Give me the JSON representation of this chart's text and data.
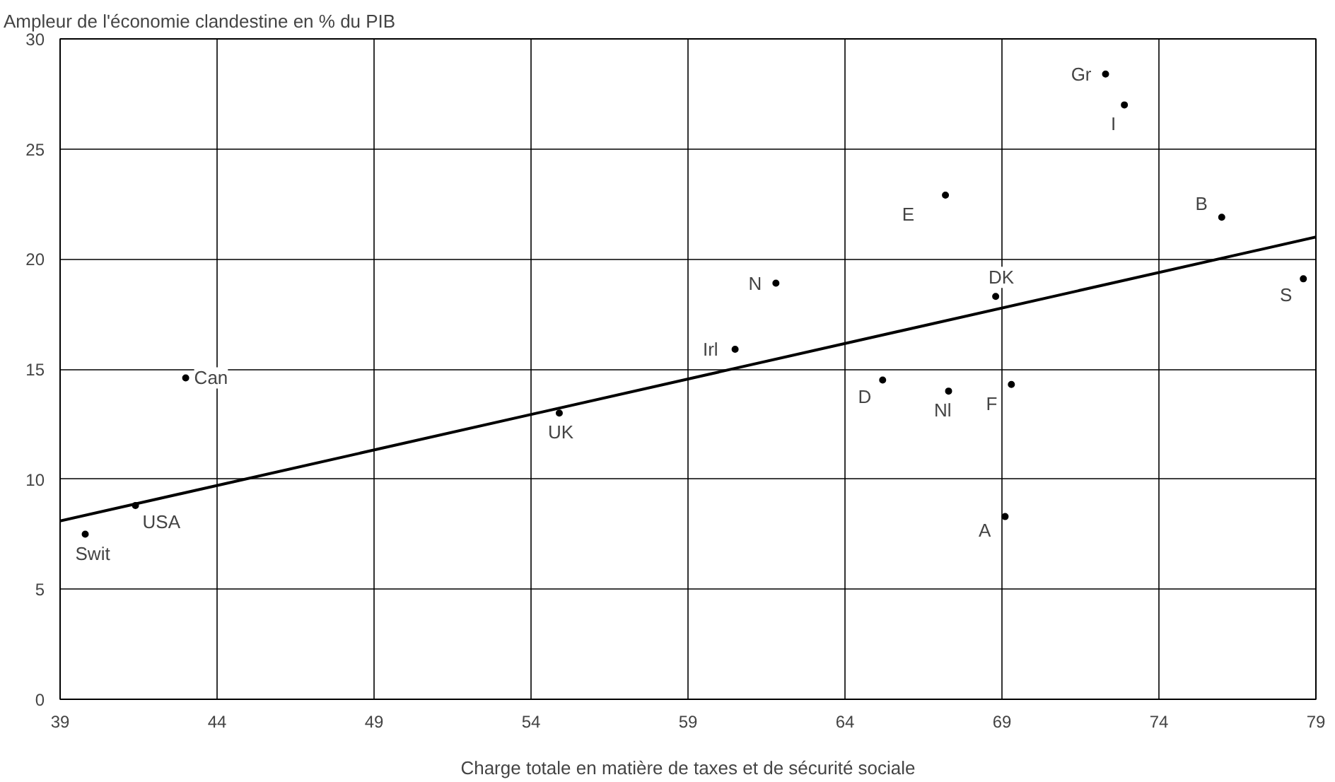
{
  "chart_data": {
    "type": "scatter",
    "ylabel": "Ampleur de l'économie clandestine en % du PIB",
    "xlabel": "Charge totale en matière de taxes et de sécurité sociale",
    "xlim": [
      39,
      79
    ],
    "xticks": [
      39,
      44,
      49,
      54,
      59,
      64,
      69,
      74,
      79
    ],
    "ylim": [
      0,
      30
    ],
    "yticks": [
      0,
      5,
      10,
      15,
      20,
      25,
      30
    ],
    "grid": true,
    "series": [
      {
        "marker": "circle",
        "color": "#000000",
        "x": [
          39.8,
          41.4,
          43.0,
          54.9,
          60.5,
          61.8,
          65.2,
          67.2,
          67.3,
          68.8,
          69.1,
          69.3,
          72.3,
          72.9,
          76.0,
          78.6
        ],
        "values": [
          7.5,
          8.8,
          14.6,
          13.0,
          15.9,
          18.9,
          14.5,
          22.9,
          14.0,
          18.3,
          8.3,
          14.3,
          28.4,
          27.0,
          21.9,
          19.1
        ]
      },
      {
        "type": "line",
        "marker": "none",
        "color": "#000000",
        "x": [
          39,
          79
        ],
        "values": [
          8.1,
          21.0
        ]
      }
    ],
    "annotations": [
      {
        "text": "Swit",
        "x": 39.8,
        "y": 7.5
      },
      {
        "text": "USA",
        "x": 41.4,
        "y": 8.8
      },
      {
        "text": "Can",
        "x": 43.0,
        "y": 14.6
      },
      {
        "text": "UK",
        "x": 54.9,
        "y": 13.0
      },
      {
        "text": "Irl",
        "x": 60.5,
        "y": 15.9
      },
      {
        "text": "N",
        "x": 61.8,
        "y": 18.9
      },
      {
        "text": "D",
        "x": 65.2,
        "y": 14.5
      },
      {
        "text": "E",
        "x": 67.2,
        "y": 22.9
      },
      {
        "text": "Nl",
        "x": 67.3,
        "y": 14.0
      },
      {
        "text": "DK",
        "x": 68.8,
        "y": 18.3
      },
      {
        "text": "A",
        "x": 69.1,
        "y": 8.3
      },
      {
        "text": "F",
        "x": 69.3,
        "y": 14.3
      },
      {
        "text": "Gr",
        "x": 72.3,
        "y": 28.4
      },
      {
        "text": "I",
        "x": 72.9,
        "y": 27.0
      },
      {
        "text": "B",
        "x": 76.0,
        "y": 21.9
      },
      {
        "text": "S",
        "x": 78.6,
        "y": 19.1
      }
    ]
  }
}
